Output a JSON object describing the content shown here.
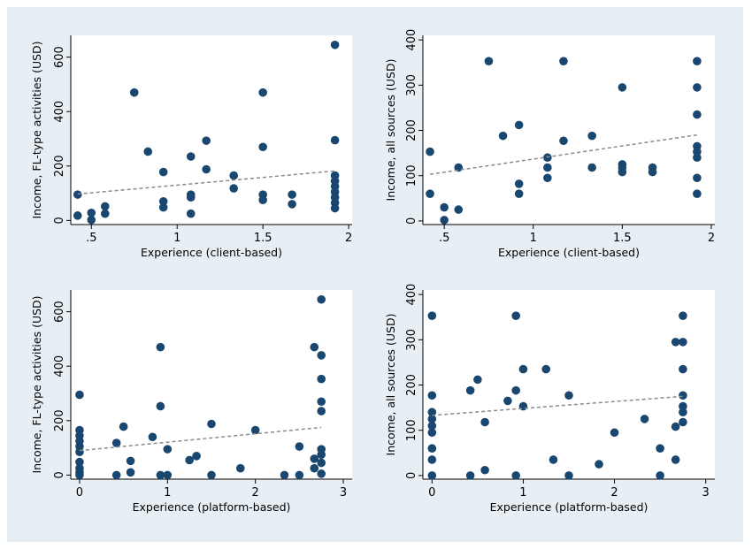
{
  "colors": {
    "background": "#e8eff4",
    "plot_area": "#ffffff",
    "marker": "#1a476f",
    "fit_line": "#8a8a8a",
    "axis": "#000000"
  },
  "chart_data": [
    {
      "type": "scatter",
      "title": "",
      "xlabel": "Experience (client-based)",
      "ylabel": "Income, FL-type activities (USD)",
      "xlim": [
        0.38,
        2.02
      ],
      "ylim": [
        -15,
        680
      ],
      "xticks": [
        0.5,
        1,
        1.5,
        2
      ],
      "xticklabels": [
        ".5",
        "1",
        "1.5",
        "2"
      ],
      "yticks": [
        0,
        200,
        400,
        600
      ],
      "yticklabels": [
        "0",
        "200",
        "400",
        "600"
      ],
      "grid": false,
      "points": [
        {
          "x": 0.42,
          "y": 95
        },
        {
          "x": 0.42,
          "y": 18
        },
        {
          "x": 0.5,
          "y": 28
        },
        {
          "x": 0.5,
          "y": 2
        },
        {
          "x": 0.58,
          "y": 52
        },
        {
          "x": 0.58,
          "y": 25
        },
        {
          "x": 0.75,
          "y": 470
        },
        {
          "x": 0.83,
          "y": 253
        },
        {
          "x": 0.92,
          "y": 178
        },
        {
          "x": 0.92,
          "y": 70
        },
        {
          "x": 0.92,
          "y": 48
        },
        {
          "x": 1.08,
          "y": 235
        },
        {
          "x": 1.08,
          "y": 95
        },
        {
          "x": 1.08,
          "y": 85
        },
        {
          "x": 1.08,
          "y": 25
        },
        {
          "x": 1.17,
          "y": 293
        },
        {
          "x": 1.17,
          "y": 188
        },
        {
          "x": 1.33,
          "y": 165
        },
        {
          "x": 1.33,
          "y": 118
        },
        {
          "x": 1.5,
          "y": 470
        },
        {
          "x": 1.5,
          "y": 270
        },
        {
          "x": 1.5,
          "y": 95
        },
        {
          "x": 1.5,
          "y": 75
        },
        {
          "x": 1.67,
          "y": 95
        },
        {
          "x": 1.67,
          "y": 60
        },
        {
          "x": 1.92,
          "y": 645
        },
        {
          "x": 1.92,
          "y": 295
        },
        {
          "x": 1.92,
          "y": 165
        },
        {
          "x": 1.92,
          "y": 145
        },
        {
          "x": 1.92,
          "y": 125
        },
        {
          "x": 1.92,
          "y": 105
        },
        {
          "x": 1.92,
          "y": 85
        },
        {
          "x": 1.92,
          "y": 65
        },
        {
          "x": 1.92,
          "y": 45
        }
      ],
      "fit_line": {
        "x": [
          0.42,
          1.92
        ],
        "y": [
          97,
          182
        ]
      }
    },
    {
      "type": "scatter",
      "title": "",
      "xlabel": "Experience (client-based)",
      "ylabel": "Income, all sources (USD)",
      "xlim": [
        0.38,
        2.02
      ],
      "ylim": [
        -8,
        410
      ],
      "xticks": [
        0.5,
        1,
        1.5,
        2
      ],
      "xticklabels": [
        ".5",
        "1",
        "1.5",
        "2"
      ],
      "yticks": [
        0,
        100,
        200,
        300,
        400
      ],
      "yticklabels": [
        "0",
        "100",
        "200",
        "300",
        "400"
      ],
      "grid": false,
      "points": [
        {
          "x": 0.42,
          "y": 153
        },
        {
          "x": 0.42,
          "y": 60
        },
        {
          "x": 0.5,
          "y": 30
        },
        {
          "x": 0.5,
          "y": 2
        },
        {
          "x": 0.58,
          "y": 118
        },
        {
          "x": 0.58,
          "y": 25
        },
        {
          "x": 0.75,
          "y": 353
        },
        {
          "x": 0.83,
          "y": 188
        },
        {
          "x": 0.92,
          "y": 212
        },
        {
          "x": 0.92,
          "y": 82
        },
        {
          "x": 0.92,
          "y": 60
        },
        {
          "x": 1.08,
          "y": 140
        },
        {
          "x": 1.08,
          "y": 118
        },
        {
          "x": 1.08,
          "y": 95
        },
        {
          "x": 1.17,
          "y": 353
        },
        {
          "x": 1.17,
          "y": 177
        },
        {
          "x": 1.33,
          "y": 188
        },
        {
          "x": 1.33,
          "y": 118
        },
        {
          "x": 1.5,
          "y": 295
        },
        {
          "x": 1.5,
          "y": 125
        },
        {
          "x": 1.5,
          "y": 118
        },
        {
          "x": 1.5,
          "y": 108
        },
        {
          "x": 1.67,
          "y": 118
        },
        {
          "x": 1.67,
          "y": 108
        },
        {
          "x": 1.92,
          "y": 353
        },
        {
          "x": 1.92,
          "y": 295
        },
        {
          "x": 1.92,
          "y": 235
        },
        {
          "x": 1.92,
          "y": 165
        },
        {
          "x": 1.92,
          "y": 153
        },
        {
          "x": 1.92,
          "y": 140
        },
        {
          "x": 1.92,
          "y": 95
        },
        {
          "x": 1.92,
          "y": 60
        }
      ],
      "fit_line": {
        "x": [
          0.42,
          1.92
        ],
        "y": [
          103,
          190
        ]
      }
    },
    {
      "type": "scatter",
      "title": "",
      "xlabel": "Experience (platform-based)",
      "ylabel": "Income, FL-type activities (USD)",
      "xlim": [
        -0.1,
        3.1
      ],
      "ylim": [
        -15,
        680
      ],
      "xticks": [
        0,
        1,
        2,
        3
      ],
      "xticklabels": [
        "0",
        "1",
        "2",
        "3"
      ],
      "yticks": [
        0,
        200,
        400,
        600
      ],
      "yticklabels": [
        "0",
        "200",
        "400",
        "600"
      ],
      "grid": false,
      "points": [
        {
          "x": 0,
          "y": 295
        },
        {
          "x": 0,
          "y": 165
        },
        {
          "x": 0,
          "y": 145
        },
        {
          "x": 0,
          "y": 125
        },
        {
          "x": 0,
          "y": 105
        },
        {
          "x": 0,
          "y": 85
        },
        {
          "x": 0,
          "y": 48
        },
        {
          "x": 0,
          "y": 25
        },
        {
          "x": 0,
          "y": 10
        },
        {
          "x": 0,
          "y": 0
        },
        {
          "x": 0.42,
          "y": 118
        },
        {
          "x": 0.42,
          "y": 0
        },
        {
          "x": 0.5,
          "y": 178
        },
        {
          "x": 0.58,
          "y": 52
        },
        {
          "x": 0.58,
          "y": 10
        },
        {
          "x": 0.83,
          "y": 140
        },
        {
          "x": 0.92,
          "y": 470
        },
        {
          "x": 0.92,
          "y": 253
        },
        {
          "x": 0.92,
          "y": 0
        },
        {
          "x": 1.0,
          "y": 95
        },
        {
          "x": 1.0,
          "y": 0
        },
        {
          "x": 1.25,
          "y": 55
        },
        {
          "x": 1.33,
          "y": 70
        },
        {
          "x": 1.5,
          "y": 188
        },
        {
          "x": 1.5,
          "y": 0
        },
        {
          "x": 1.83,
          "y": 25
        },
        {
          "x": 2.0,
          "y": 165
        },
        {
          "x": 2.33,
          "y": 0
        },
        {
          "x": 2.5,
          "y": 105
        },
        {
          "x": 2.5,
          "y": 0
        },
        {
          "x": 2.67,
          "y": 470
        },
        {
          "x": 2.67,
          "y": 60
        },
        {
          "x": 2.67,
          "y": 25
        },
        {
          "x": 2.75,
          "y": 645
        },
        {
          "x": 2.75,
          "y": 440
        },
        {
          "x": 2.75,
          "y": 353
        },
        {
          "x": 2.75,
          "y": 270
        },
        {
          "x": 2.75,
          "y": 235
        },
        {
          "x": 2.75,
          "y": 95
        },
        {
          "x": 2.75,
          "y": 75
        },
        {
          "x": 2.75,
          "y": 45
        },
        {
          "x": 2.75,
          "y": 5
        }
      ],
      "fit_line": {
        "x": [
          0,
          2.75
        ],
        "y": [
          90,
          175
        ]
      }
    },
    {
      "type": "scatter",
      "title": "",
      "xlabel": "Experience (platform-based)",
      "ylabel": "Income, all sources (USD)",
      "xlim": [
        -0.1,
        3.1
      ],
      "ylim": [
        -8,
        410
      ],
      "xticks": [
        0,
        1,
        2,
        3
      ],
      "xticklabels": [
        "0",
        "1",
        "2",
        "3"
      ],
      "yticks": [
        0,
        100,
        200,
        300,
        400
      ],
      "yticklabels": [
        "0",
        "100",
        "200",
        "300",
        "400"
      ],
      "grid": false,
      "points": [
        {
          "x": 0,
          "y": 353
        },
        {
          "x": 0,
          "y": 177
        },
        {
          "x": 0,
          "y": 140
        },
        {
          "x": 0,
          "y": 125
        },
        {
          "x": 0,
          "y": 110
        },
        {
          "x": 0,
          "y": 95
        },
        {
          "x": 0,
          "y": 60
        },
        {
          "x": 0,
          "y": 35
        },
        {
          "x": 0,
          "y": 0
        },
        {
          "x": 0.42,
          "y": 188
        },
        {
          "x": 0.42,
          "y": 0
        },
        {
          "x": 0.5,
          "y": 212
        },
        {
          "x": 0.58,
          "y": 118
        },
        {
          "x": 0.58,
          "y": 12
        },
        {
          "x": 0.83,
          "y": 165
        },
        {
          "x": 0.92,
          "y": 353
        },
        {
          "x": 0.92,
          "y": 188
        },
        {
          "x": 0.92,
          "y": 0
        },
        {
          "x": 1.0,
          "y": 235
        },
        {
          "x": 1.0,
          "y": 153
        },
        {
          "x": 1.25,
          "y": 235
        },
        {
          "x": 1.33,
          "y": 35
        },
        {
          "x": 1.5,
          "y": 177
        },
        {
          "x": 1.5,
          "y": 0
        },
        {
          "x": 1.83,
          "y": 25
        },
        {
          "x": 2.0,
          "y": 95
        },
        {
          "x": 2.33,
          "y": 125
        },
        {
          "x": 2.5,
          "y": 60
        },
        {
          "x": 2.5,
          "y": 0
        },
        {
          "x": 2.67,
          "y": 295
        },
        {
          "x": 2.67,
          "y": 108
        },
        {
          "x": 2.67,
          "y": 35
        },
        {
          "x": 2.75,
          "y": 353
        },
        {
          "x": 2.75,
          "y": 295
        },
        {
          "x": 2.75,
          "y": 235
        },
        {
          "x": 2.75,
          "y": 177
        },
        {
          "x": 2.75,
          "y": 153
        },
        {
          "x": 2.75,
          "y": 140
        },
        {
          "x": 2.75,
          "y": 118
        }
      ],
      "fit_line": {
        "x": [
          0,
          2.75
        ],
        "y": [
          133,
          175
        ]
      }
    }
  ]
}
